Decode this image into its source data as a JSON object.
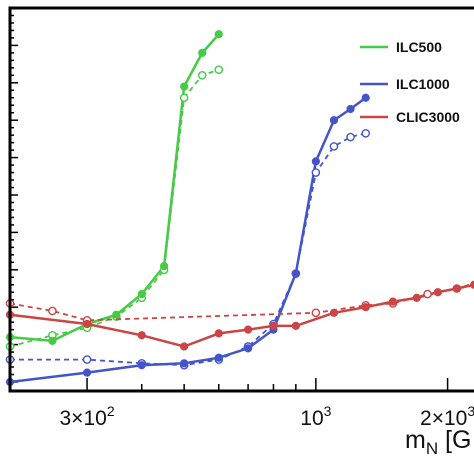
{
  "chart_data": {
    "type": "line",
    "xscale": "log",
    "xlim": [
      200,
      2500
    ],
    "ylim": [
      0,
      1
    ],
    "x_ticks": [
      {
        "value": 300,
        "label": "3×10²"
      },
      {
        "value": 1000,
        "label": "10³"
      },
      {
        "value": 2000,
        "label": "2×10³"
      }
    ],
    "xlabel": "m_N [G",
    "legend_position": "top-right",
    "grid": false,
    "series": [
      {
        "name": "ILC500",
        "color": "#44cc44",
        "solid": [
          [
            200,
            0.12
          ],
          [
            250,
            0.11
          ],
          [
            300,
            0.155
          ],
          [
            350,
            0.18
          ],
          [
            400,
            0.235
          ],
          [
            450,
            0.31
          ],
          [
            500,
            0.79
          ],
          [
            550,
            0.88
          ],
          [
            600,
            0.93
          ]
        ],
        "dashed": [
          [
            200,
            0.095
          ],
          [
            250,
            0.125
          ],
          [
            300,
            0.145
          ],
          [
            350,
            0.175
          ],
          [
            400,
            0.225
          ],
          [
            450,
            0.3
          ],
          [
            500,
            0.76
          ],
          [
            550,
            0.82
          ],
          [
            600,
            0.835
          ]
        ]
      },
      {
        "name": "ILC1000",
        "color": "#4455cc",
        "solid": [
          [
            200,
            0.0
          ],
          [
            300,
            0.025
          ],
          [
            400,
            0.045
          ],
          [
            500,
            0.05
          ],
          [
            600,
            0.065
          ],
          [
            700,
            0.09
          ],
          [
            800,
            0.14
          ],
          [
            900,
            0.29
          ],
          [
            1000,
            0.59
          ],
          [
            1100,
            0.7
          ],
          [
            1200,
            0.73
          ],
          [
            1300,
            0.76
          ]
        ],
        "dashed": [
          [
            200,
            0.06
          ],
          [
            300,
            0.06
          ],
          [
            400,
            0.05
          ],
          [
            500,
            0.045
          ],
          [
            600,
            0.06
          ],
          [
            700,
            0.095
          ],
          [
            800,
            0.155
          ],
          [
            900,
            0.29
          ],
          [
            1000,
            0.56
          ],
          [
            1100,
            0.63
          ],
          [
            1200,
            0.655
          ],
          [
            1300,
            0.665
          ]
        ]
      },
      {
        "name": "CLIC3000",
        "color": "#cc4444",
        "solid": [
          [
            200,
            0.18
          ],
          [
            300,
            0.155
          ],
          [
            400,
            0.125
          ],
          [
            500,
            0.095
          ],
          [
            600,
            0.13
          ],
          [
            700,
            0.14
          ],
          [
            800,
            0.15
          ],
          [
            900,
            0.15
          ],
          [
            1100,
            0.185
          ],
          [
            1300,
            0.2
          ],
          [
            1500,
            0.215
          ],
          [
            1700,
            0.225
          ],
          [
            1900,
            0.24
          ],
          [
            2100,
            0.25
          ],
          [
            2300,
            0.26
          ],
          [
            2500,
            0.28
          ]
        ],
        "dashed": [
          [
            200,
            0.21
          ],
          [
            250,
            0.19
          ],
          [
            300,
            0.165
          ],
          [
            1000,
            0.185
          ],
          [
            1300,
            0.205
          ],
          [
            1500,
            0.21
          ],
          [
            1800,
            0.235
          ],
          [
            2100,
            0.25
          ],
          [
            2400,
            0.27
          ]
        ]
      }
    ]
  }
}
